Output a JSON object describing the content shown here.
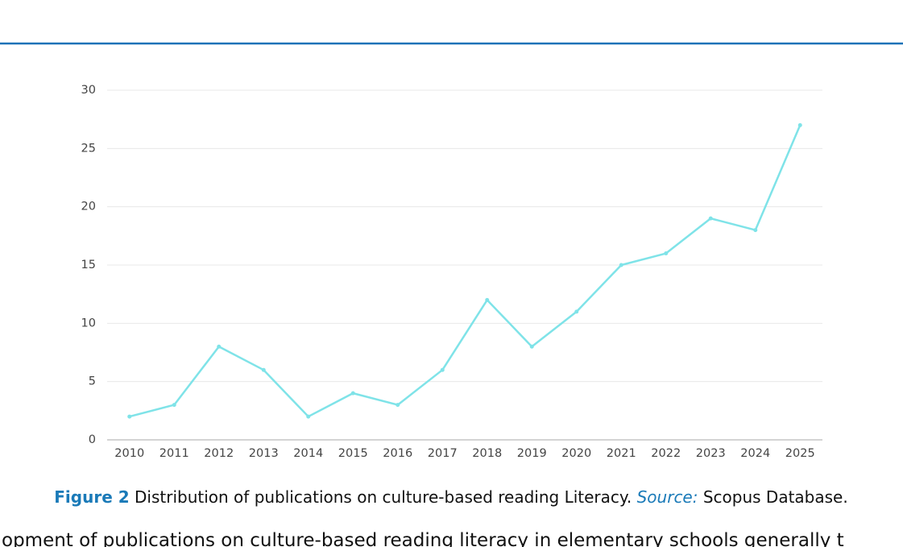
{
  "chart_data": {
    "type": "line",
    "categories": [
      "2010",
      "2011",
      "2012",
      "2013",
      "2014",
      "2015",
      "2016",
      "2017",
      "2018",
      "2019",
      "2020",
      "2021",
      "2022",
      "2023",
      "2024",
      "2025"
    ],
    "values": [
      2,
      3,
      8,
      6,
      2,
      4,
      3,
      6,
      12,
      8,
      11,
      15,
      16,
      19,
      18,
      27
    ],
    "color": "#7fe3e8",
    "ylim": [
      0,
      30
    ],
    "yticks": [
      0,
      5,
      10,
      15,
      20,
      25,
      30
    ],
    "grid": true
  },
  "caption": {
    "label": "Figure 2",
    "text": "Distribution of publications on culture-based reading Literacy.",
    "source_label": "Source:",
    "source": "Scopus Database."
  },
  "body_text": "opment of publications on culture-based reading literacy in elementary schools generally t"
}
